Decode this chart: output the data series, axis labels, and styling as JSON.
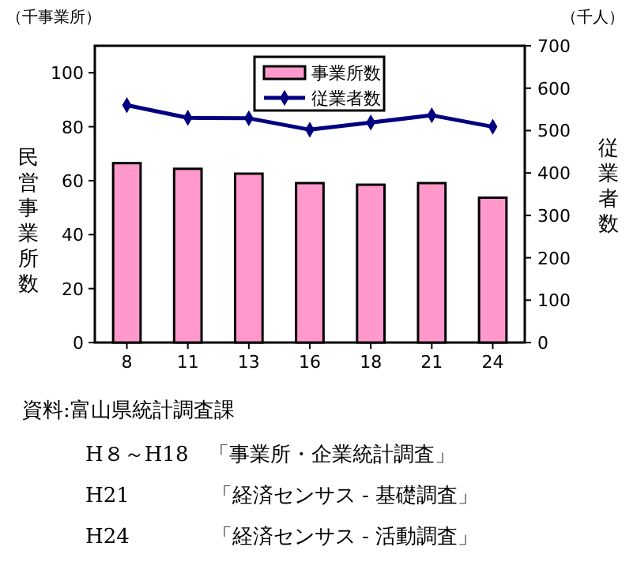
{
  "chart_data": {
    "type": "bar",
    "ylabel": "民営事業所数",
    "y2label": "従業者数",
    "categories": [
      "8",
      "11",
      "13",
      "16",
      "18",
      "21",
      "24"
    ],
    "series": [
      {
        "name": "事業所数",
        "color": "#ff99cc",
        "values": [
          66.5,
          64.4,
          62.6,
          59.1,
          58.5,
          59.1,
          53.7
        ]
      },
      {
        "name": "従業者数",
        "type": "line",
        "axis": "y2",
        "color": "#000080",
        "marker": "diamond",
        "values": [
          560,
          530,
          529,
          502,
          519,
          536,
          509
        ]
      }
    ],
    "ylim": [
      0,
      110
    ],
    "yticks": [
      0,
      20,
      40,
      60,
      80,
      100
    ],
    "y2lim": [
      0,
      700
    ],
    "y2ticks": [
      0,
      100,
      200,
      300,
      400,
      500,
      600,
      700
    ],
    "legend": "top",
    "grid": false,
    "annotations": [
      "（千事業所）",
      "（千人）",
      "資料:富山県統計調査課",
      "H８～H18　「事業所・企業統計調査」",
      "H21　　　　「経済センサス - 基礎調査」",
      "H24　　　　「経済センサス - 活動調査」"
    ]
  }
}
